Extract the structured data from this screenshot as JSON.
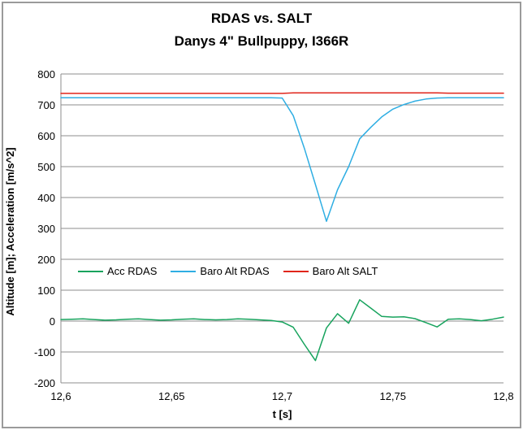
{
  "chart_data": {
    "type": "line",
    "title": "RDAS vs. SALT",
    "subtitle": "Danys 4\" Bullpuppy, I366R",
    "xlabel": "t [s]",
    "ylabel": "Altitude [m]; Acceleration [m/s^2]",
    "xlim": [
      12.6,
      12.8
    ],
    "ylim": [
      -200,
      800
    ],
    "grid": "horizontal-gray",
    "legend_position": "inside-bottom-left-row",
    "x_tick_labels": [
      "12,6",
      "12,65",
      "12,7",
      "12,75",
      "12,8"
    ],
    "x_tick_values": [
      12.6,
      12.65,
      12.7,
      12.75,
      12.8
    ],
    "y_tick_labels": [
      "800",
      "700",
      "600",
      "500",
      "400",
      "300",
      "200",
      "100",
      "0",
      "-100",
      "-200"
    ],
    "y_tick_values": [
      800,
      700,
      600,
      500,
      400,
      300,
      200,
      100,
      0,
      -100,
      -200
    ],
    "x_start": 12.6,
    "x_step": 0.005,
    "series": [
      {
        "name": "Acc RDAS",
        "color": "#17a35d",
        "values": [
          5,
          6,
          7,
          5,
          3,
          4,
          6,
          7,
          5,
          3,
          4,
          6,
          7,
          5,
          4,
          5,
          7,
          6,
          4,
          2,
          -3,
          -20,
          -75,
          -128,
          -22,
          24,
          -7,
          69,
          42,
          15,
          13,
          14,
          8,
          -5,
          -19,
          6,
          7,
          5,
          1,
          6,
          13
        ]
      },
      {
        "name": "Baro Alt RDAS",
        "color": "#2faee3",
        "values": [
          723,
          723,
          723,
          723,
          723,
          723,
          723,
          723,
          723,
          723,
          723,
          723,
          723,
          723,
          723,
          723,
          723,
          723,
          723,
          723,
          722,
          665,
          560,
          442,
          323,
          425,
          500,
          590,
          627,
          661,
          686,
          701,
          712,
          719,
          722,
          723,
          723,
          723,
          723,
          723,
          723
        ]
      },
      {
        "name": "Baro Alt SALT",
        "color": "#e0251b",
        "values": [
          737,
          737,
          737,
          737,
          737,
          737,
          737,
          737,
          737,
          737,
          737,
          737,
          737,
          737,
          737,
          737,
          737,
          737,
          737,
          737,
          737,
          739,
          739,
          739,
          739,
          739,
          739,
          739,
          739,
          739,
          739,
          739,
          739,
          739,
          739,
          738,
          738,
          738,
          738,
          738,
          738
        ]
      }
    ],
    "colors": {
      "gridline": "#8c8c8c",
      "axis_line": "#8c8c8c",
      "frame_border": "#9a9a9a",
      "background": "#ffffff",
      "text": "#000000"
    }
  }
}
